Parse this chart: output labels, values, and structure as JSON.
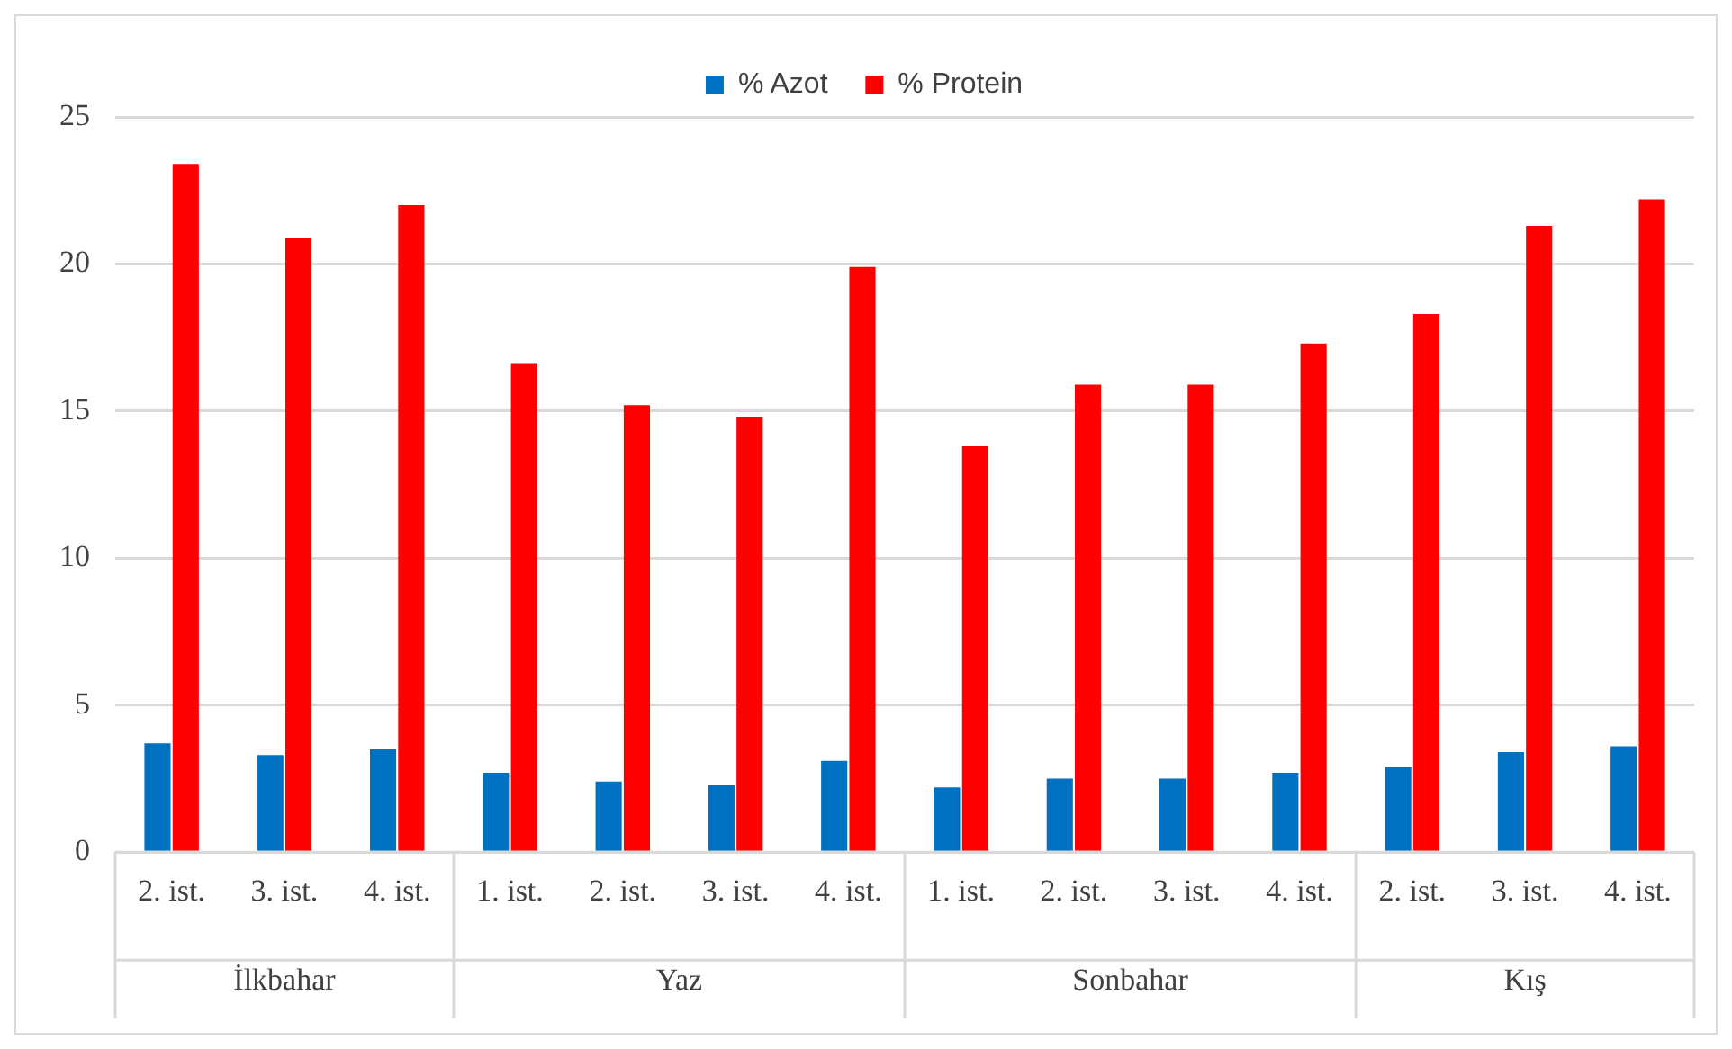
{
  "chart_data": {
    "type": "bar",
    "categories": [
      "2. ist.",
      "3. ist.",
      "4. ist.",
      "1. ist.",
      "2. ist.",
      "3. ist.",
      "4. ist.",
      "1. ist.",
      "2. ist.",
      "3. ist.",
      "4. ist.",
      "2. ist.",
      "3. ist.",
      "4. ist."
    ],
    "series": [
      {
        "name": "% Azot",
        "color": "#0070c0",
        "values": [
          3.7,
          3.3,
          3.5,
          2.7,
          2.4,
          2.3,
          3.1,
          2.2,
          2.5,
          2.5,
          2.7,
          2.9,
          3.4,
          3.6
        ]
      },
      {
        "name": "% Protein",
        "color": "#ff0000",
        "values": [
          23.4,
          20.9,
          22.0,
          16.6,
          15.2,
          14.8,
          19.9,
          13.8,
          15.9,
          15.9,
          17.3,
          18.3,
          21.3,
          22.2
        ]
      }
    ],
    "annotations": [
      "İlkbahar",
      "Yaz",
      "Sonbahar",
      "Kış"
    ],
    "ylim": [
      0,
      25
    ],
    "yticks": [
      0,
      5,
      10,
      15,
      20,
      25
    ],
    "grid": "y",
    "legend": "top"
  }
}
